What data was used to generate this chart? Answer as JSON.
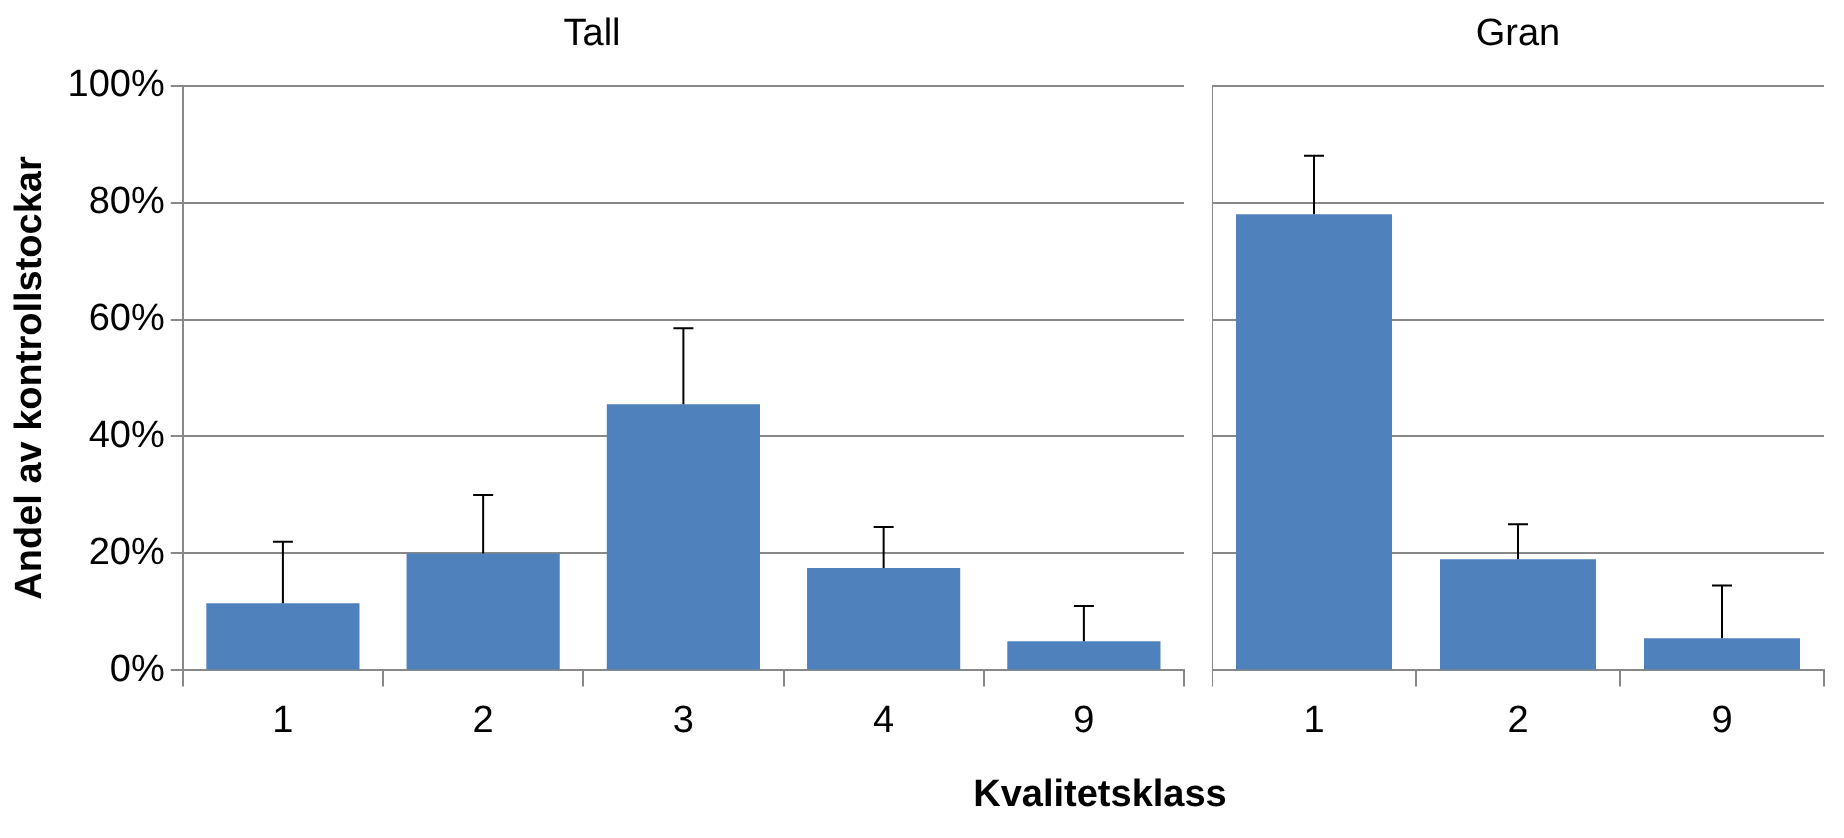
{
  "chart_data": [
    {
      "type": "bar",
      "title": "Tall",
      "ylabel": "Andel av kontrollstockar",
      "xlabel": "Kvalitetsklass",
      "categories": [
        "1",
        "2",
        "3",
        "4",
        "9"
      ],
      "series": [
        {
          "color": "#4f81bd",
          "values": [
            11.5,
            20,
            45.5,
            17.5,
            5
          ],
          "errors": [
            [
              11.5,
              22
            ],
            [
              20,
              30
            ],
            [
              45.5,
              58.5
            ],
            [
              17.5,
              24.5
            ],
            [
              5,
              11
            ]
          ]
        }
      ],
      "ylim": [
        0,
        100
      ],
      "yticks": [
        {
          "value": 0,
          "label": "0%"
        },
        {
          "value": 20,
          "label": "20%"
        },
        {
          "value": 40,
          "label": "40%"
        },
        {
          "value": 60,
          "label": "60%"
        },
        {
          "value": 80,
          "label": "80%"
        },
        {
          "value": 100,
          "label": "100%"
        }
      ],
      "grid": "y"
    },
    {
      "type": "bar",
      "title": "Gran",
      "categories": [
        "1",
        "2",
        "9"
      ],
      "series": [
        {
          "color": "#4f81bd",
          "values": [
            78,
            19,
            5.5
          ],
          "errors": [
            [
              78,
              88
            ],
            [
              19,
              25
            ],
            [
              5.5,
              14.5
            ]
          ]
        }
      ],
      "ylim": [
        0,
        100
      ],
      "yticks": [
        {
          "value": 0,
          "label": null
        },
        {
          "value": 20,
          "label": null
        },
        {
          "value": 40,
          "label": null
        },
        {
          "value": 60,
          "label": null
        },
        {
          "value": 80,
          "label": null
        },
        {
          "value": 100,
          "label": null
        }
      ],
      "grid": "y",
      "tick_labels": "x"
    }
  ]
}
